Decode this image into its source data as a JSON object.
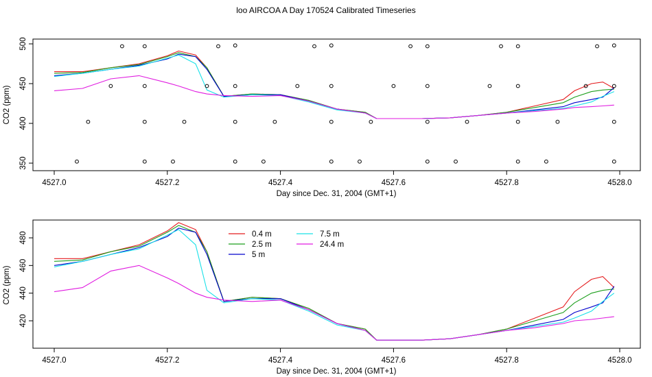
{
  "title": "loo AIRCOA A  Day 170524  Calibrated Timeseries",
  "chart_data": [
    {
      "type": "scatter",
      "xlabel": "Day since Dec. 31, 2004 (GMT+1)",
      "ylabel": "CO2 (ppm)",
      "xlim": [
        4527.0,
        4528.0
      ],
      "ylim": [
        350,
        500
      ],
      "xticks": [
        "4527.0",
        "4527.2",
        "4527.4",
        "4527.6",
        "4527.8",
        "4528.0"
      ],
      "yticks": [
        "350",
        "400",
        "450",
        "500"
      ],
      "grid": false,
      "series": [
        {
          "color": "#000000",
          "marker": "open-circle",
          "points": [
            [
              4527.04,
              352
            ],
            [
              4527.06,
              402
            ],
            [
              4527.1,
              447
            ],
            [
              4527.12,
              497
            ],
            [
              4527.16,
              352
            ],
            [
              4527.16,
              402
            ],
            [
              4527.16,
              447
            ],
            [
              4527.16,
              497
            ],
            [
              4527.21,
              352
            ],
            [
              4527.23,
              402
            ],
            [
              4527.27,
              447
            ],
            [
              4527.29,
              497
            ],
            [
              4527.32,
              352
            ],
            [
              4527.32,
              402
            ],
            [
              4527.32,
              447
            ],
            [
              4527.32,
              498
            ],
            [
              4527.37,
              352
            ],
            [
              4527.39,
              402
            ],
            [
              4527.43,
              447
            ],
            [
              4527.46,
              497
            ],
            [
              4527.49,
              352
            ],
            [
              4527.49,
              402
            ],
            [
              4527.49,
              447
            ],
            [
              4527.49,
              498
            ],
            [
              4527.54,
              352
            ],
            [
              4527.56,
              402
            ],
            [
              4527.6,
              447
            ],
            [
              4527.63,
              497
            ],
            [
              4527.66,
              352
            ],
            [
              4527.66,
              402
            ],
            [
              4527.66,
              447
            ],
            [
              4527.66,
              497
            ],
            [
              4527.71,
              352
            ],
            [
              4527.73,
              402
            ],
            [
              4527.77,
              447
            ],
            [
              4527.79,
              497
            ],
            [
              4527.82,
              352
            ],
            [
              4527.82,
              402
            ],
            [
              4527.82,
              447
            ],
            [
              4527.82,
              497
            ],
            [
              4527.87,
              352
            ],
            [
              4527.89,
              402
            ],
            [
              4527.94,
              447
            ],
            [
              4527.96,
              497
            ],
            [
              4527.99,
              352
            ],
            [
              4527.99,
              402
            ],
            [
              4527.99,
              447
            ],
            [
              4527.99,
              498
            ]
          ]
        },
        {
          "name": "0.4 m",
          "color": "#e41a1c",
          "line": true,
          "ref": "1.series.0"
        },
        {
          "name": "2.5 m",
          "color": "#1b9e1b",
          "line": true,
          "ref": "1.series.1"
        },
        {
          "name": "5 m",
          "color": "#0000cc",
          "line": true,
          "ref": "1.series.2"
        },
        {
          "name": "7.5 m",
          "color": "#17e0e8",
          "line": true,
          "ref": "1.series.3"
        },
        {
          "name": "24.4 m",
          "color": "#e01ae0",
          "line": true,
          "ref": "1.series.4"
        }
      ]
    },
    {
      "type": "line",
      "xlabel": "Day since Dec. 31, 2004 (GMT+1)",
      "ylabel": "CO2 (ppm)",
      "xlim": [
        4527.0,
        4528.0
      ],
      "ylim": [
        405,
        493
      ],
      "xticks": [
        "4527.0",
        "4527.2",
        "4527.4",
        "4527.6",
        "4527.8",
        "4528.0"
      ],
      "yticks": [
        "420",
        "440",
        "460",
        "480"
      ],
      "grid": false,
      "legend_position": "top-center",
      "x": [
        4527.0,
        4527.05,
        4527.1,
        4527.15,
        4527.2,
        4527.22,
        4527.25,
        4527.27,
        4527.3,
        4527.35,
        4527.4,
        4527.45,
        4527.5,
        4527.55,
        4527.57,
        4527.6,
        4527.65,
        4527.7,
        4527.75,
        4527.8,
        4527.85,
        4527.9,
        4527.92,
        4527.95,
        4527.97,
        4527.99
      ],
      "series": [
        {
          "name": "0.4 m",
          "color": "#e41a1c",
          "values": [
            465,
            465,
            470,
            475,
            485,
            491,
            486,
            470,
            434,
            437,
            436,
            429,
            418,
            414,
            406,
            406,
            406,
            407,
            410,
            414,
            422,
            430,
            441,
            450,
            452,
            444
          ]
        },
        {
          "name": "2.5 m",
          "color": "#1b9e1b",
          "values": [
            463,
            464,
            470,
            474,
            484,
            489,
            484,
            470,
            434,
            437,
            436,
            429,
            418,
            414,
            406,
            406,
            406,
            407,
            410,
            414,
            420,
            426,
            433,
            440,
            442,
            443
          ]
        },
        {
          "name": "5 m",
          "color": "#0000cc",
          "values": [
            460,
            463,
            468,
            473,
            481,
            487,
            484,
            468,
            434,
            436,
            436,
            428,
            418,
            413,
            406,
            406,
            406,
            407,
            410,
            413,
            417,
            421,
            426,
            430,
            433,
            445
          ]
        },
        {
          "name": "7.5 m",
          "color": "#17e0e8",
          "values": [
            459,
            463,
            468,
            472,
            482,
            486,
            475,
            442,
            433,
            436,
            435,
            427,
            417,
            413,
            406,
            406,
            406,
            407,
            410,
            413,
            416,
            419,
            422,
            427,
            434,
            440
          ]
        },
        {
          "name": "24.4 m",
          "color": "#e01ae0",
          "values": [
            441,
            444,
            456,
            460,
            451,
            447,
            440,
            437,
            435,
            434,
            435,
            428,
            418,
            413,
            406,
            406,
            406,
            407,
            410,
            413,
            415,
            418,
            420,
            421,
            422,
            423
          ]
        }
      ]
    }
  ]
}
